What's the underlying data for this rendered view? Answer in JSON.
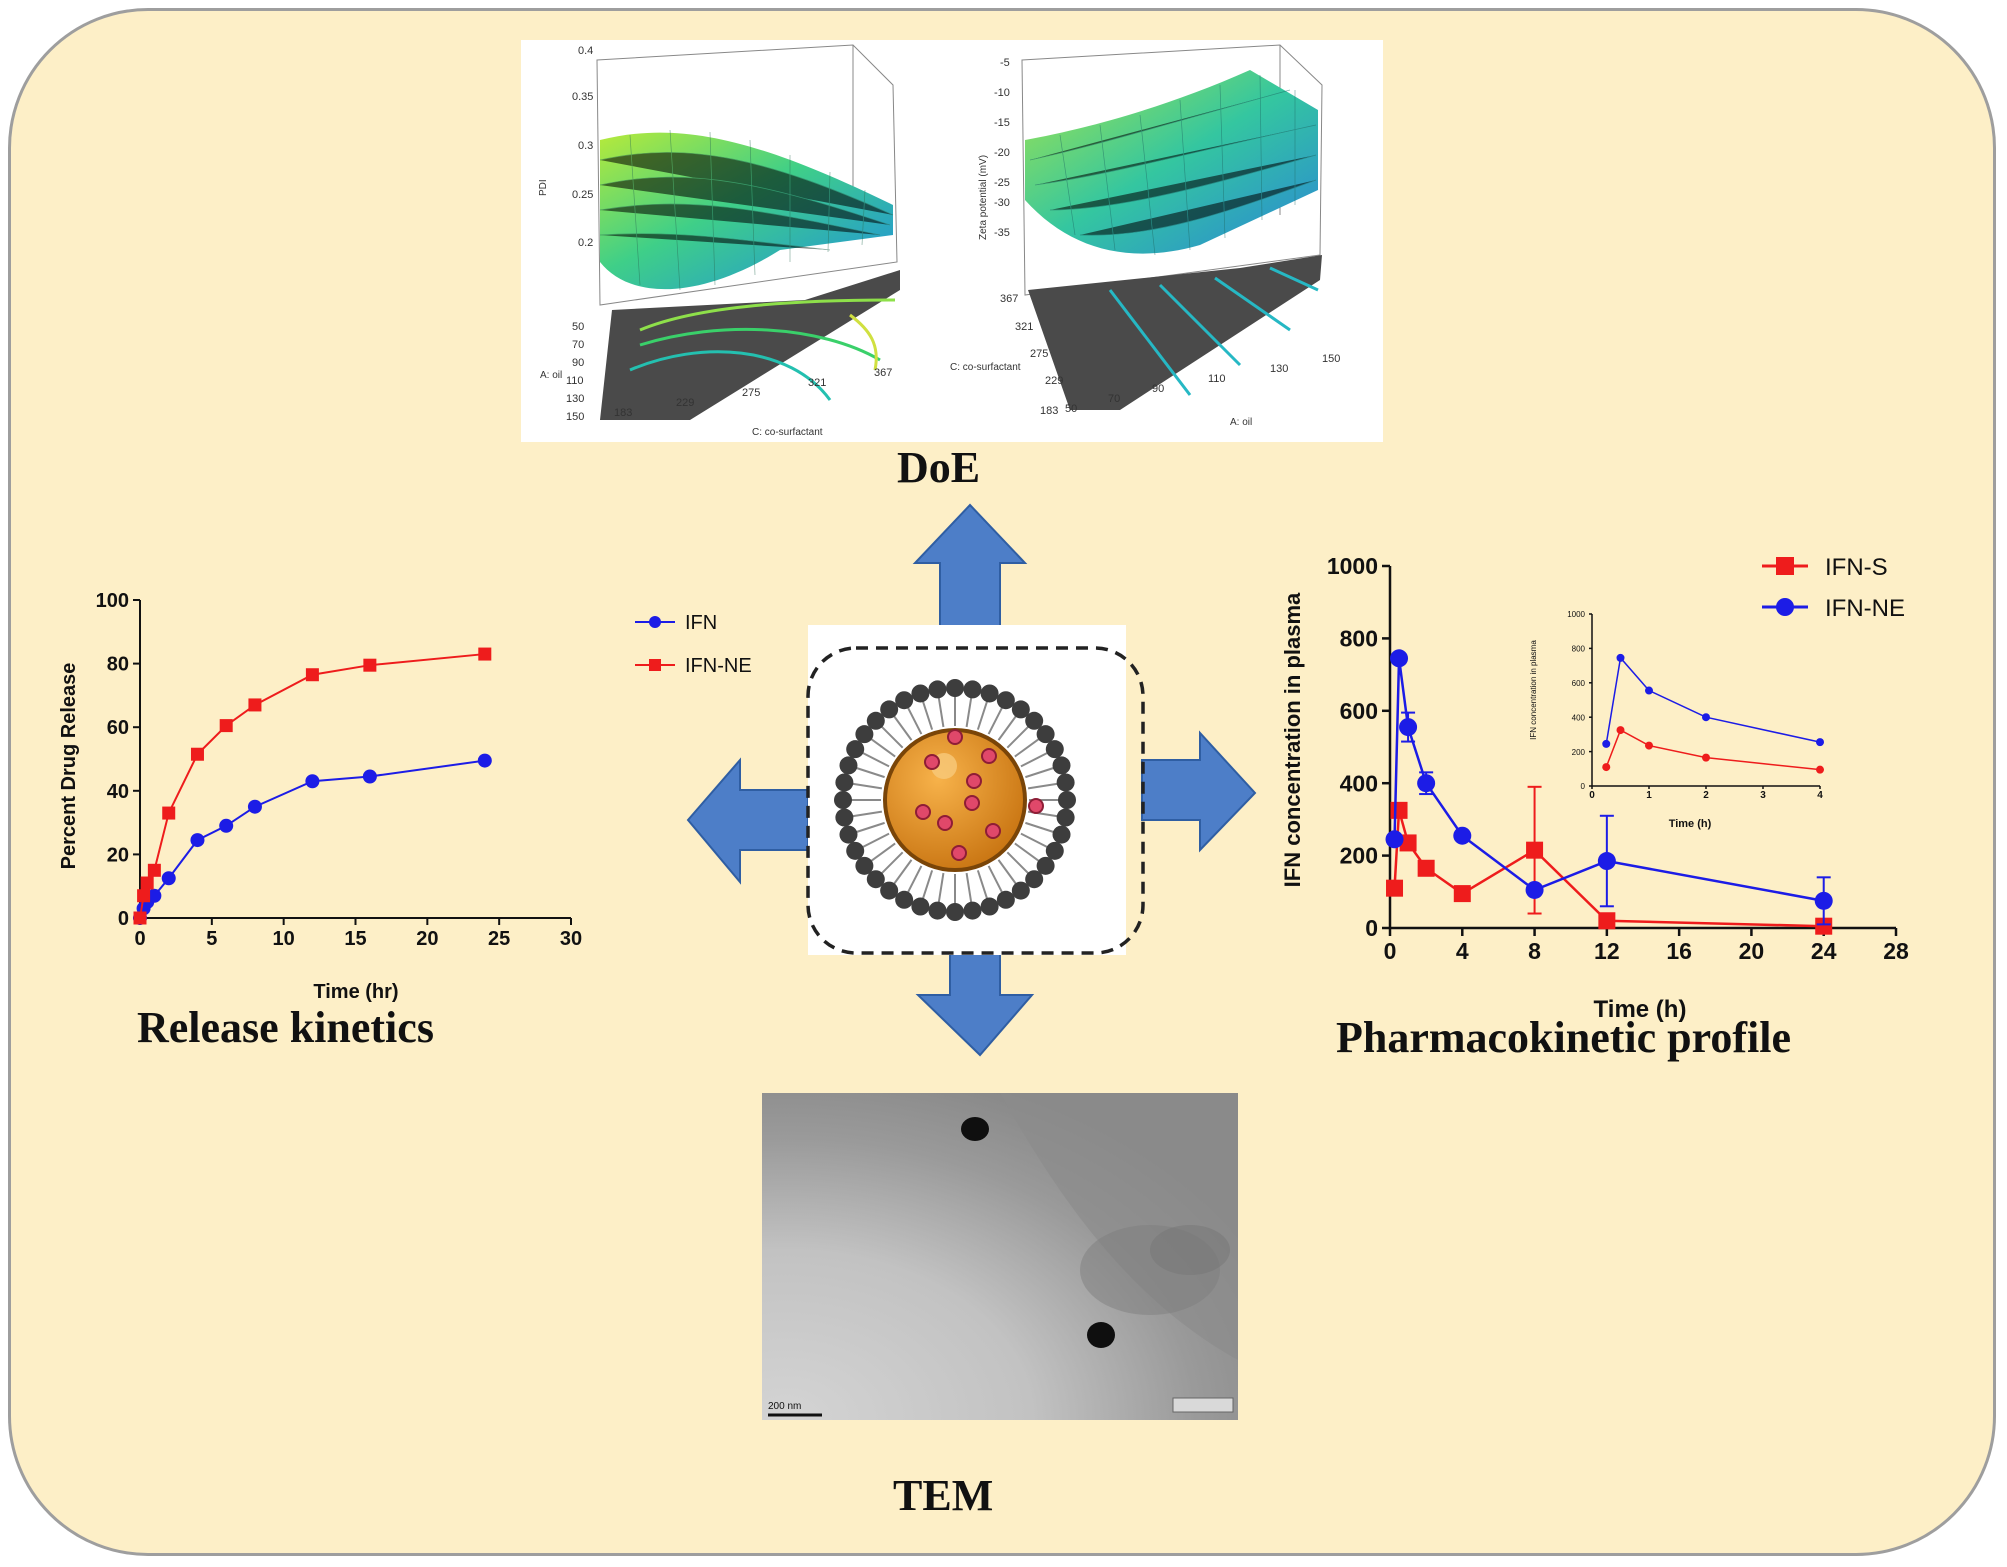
{
  "colors": {
    "background": "#fdefc7",
    "arrow": "#4d7ec8",
    "arrowStroke": "#2f5ea3",
    "red": "#ee1c1c",
    "blue": "#1c1ce6"
  },
  "titles": {
    "doe": "DoE",
    "release": "Release kinetics",
    "pk": "Pharmacokinetic  profile",
    "tem": "TEM"
  },
  "doe": {
    "left": {
      "zlabel": "PDI",
      "zticks": [
        "0.4",
        "0.35",
        "0.3",
        "0.25",
        "0.2"
      ],
      "ylabel": "A: oil",
      "yticks": [
        "50",
        "70",
        "90",
        "110",
        "130",
        "150"
      ],
      "xlabel": "C: co-surfactant",
      "xticks": [
        "183",
        "229",
        "275",
        "321",
        "367"
      ]
    },
    "right": {
      "zlabel": "Zeta potential (mV)",
      "zticks": [
        "-5",
        "-10",
        "-15",
        "-20",
        "-25",
        "-30",
        "-35"
      ],
      "ylabel": "C: co-surfactant",
      "yticks": [
        "367",
        "321",
        "275",
        "229",
        "183"
      ],
      "xlabel": "A: oil",
      "xticks": [
        "50",
        "70",
        "90",
        "110",
        "130",
        "150"
      ]
    }
  },
  "nanoemulsion_icon": "nanoemulsion-droplet-icon",
  "tem_image": {
    "scale_label": "200 nm"
  },
  "chart_data": [
    {
      "type": "line",
      "name": "release",
      "xlabel": "Time (hr)",
      "ylabel": "Percent Drug Release",
      "xlim": [
        0,
        30
      ],
      "ylim": [
        0,
        100
      ],
      "xticks": [
        "0",
        "5",
        "10",
        "15",
        "20",
        "25",
        "30"
      ],
      "yticks": [
        "0",
        "20",
        "40",
        "60",
        "80",
        "100"
      ],
      "legend": "left",
      "series": [
        {
          "name": "IFN",
          "marker": "circle",
          "color": "#1c1ce6",
          "x": [
            0,
            0.25,
            0.5,
            1,
            2,
            4,
            6,
            8,
            12,
            16,
            24
          ],
          "y": [
            0,
            3,
            5,
            7,
            12.5,
            24.5,
            29,
            35,
            43,
            44.5,
            49.5
          ]
        },
        {
          "name": "IFN-NE",
          "marker": "square",
          "color": "#ee1c1c",
          "x": [
            0,
            0.25,
            0.5,
            1,
            2,
            4,
            6,
            8,
            12,
            16,
            24
          ],
          "y": [
            0,
            7,
            11,
            15,
            33,
            51.5,
            60.5,
            67,
            76.5,
            79.5,
            83
          ]
        }
      ]
    },
    {
      "type": "line",
      "name": "pk",
      "xlabel": "Time (h)",
      "ylabel": "IFN concentration in plasma",
      "xlim": [
        0,
        28
      ],
      "ylim": [
        0,
        1000
      ],
      "xticks": [
        "0",
        "4",
        "8",
        "12",
        "16",
        "20",
        "24",
        "28"
      ],
      "yticks": [
        "0",
        "200",
        "400",
        "600",
        "800",
        "1000"
      ],
      "legend": "top-right",
      "series": [
        {
          "name": "IFN-S",
          "marker": "square",
          "color": "#ee1c1c",
          "x": [
            0.25,
            0.5,
            1,
            2,
            4,
            8,
            12,
            24
          ],
          "y": [
            110,
            325,
            235,
            165,
            95,
            215,
            20,
            5
          ],
          "err": [
            0,
            0,
            0,
            0,
            0,
            175,
            0,
            0
          ]
        },
        {
          "name": "IFN-NE",
          "marker": "circle",
          "color": "#1c1ce6",
          "x": [
            0.25,
            0.5,
            1,
            2,
            4,
            8,
            12,
            24
          ],
          "y": [
            245,
            745,
            555,
            400,
            255,
            105,
            185,
            75
          ],
          "err": [
            0,
            0,
            40,
            30,
            0,
            0,
            125,
            65
          ]
        }
      ]
    },
    {
      "type": "line",
      "name": "pk-inset",
      "xlabel": "Time (h)",
      "ylabel": "IFN concentration in plasma",
      "xlim": [
        0,
        4
      ],
      "ylim": [
        0,
        1000
      ],
      "xticks": [
        "0",
        "1",
        "2",
        "3",
        "4"
      ],
      "yticks": [
        "0",
        "200",
        "400",
        "600",
        "800",
        "1000"
      ],
      "series": [
        {
          "name": "IFN-S",
          "marker": "circle",
          "color": "#ee1c1c",
          "x": [
            0.25,
            0.5,
            1,
            2,
            4
          ],
          "y": [
            110,
            325,
            235,
            165,
            95
          ]
        },
        {
          "name": "IFN-NE",
          "marker": "circle",
          "color": "#1c1ce6",
          "x": [
            0.25,
            0.5,
            1,
            2,
            4
          ],
          "y": [
            245,
            745,
            555,
            400,
            255
          ]
        }
      ]
    }
  ]
}
